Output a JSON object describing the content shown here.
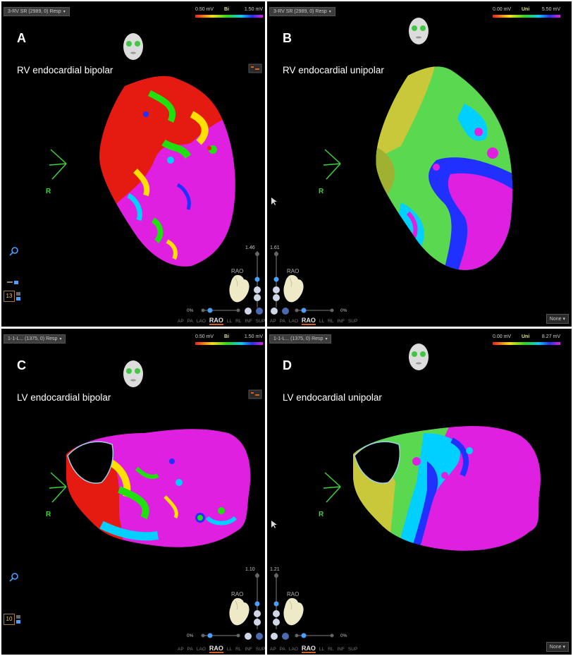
{
  "panels": {
    "a": {
      "letter": "A",
      "caption": "RV endocardial bipolar",
      "map_name": "3-RV SR (2989, 0) Resp",
      "colorbar": {
        "min": "0.50 mV",
        "mode": "Bi",
        "max": "1.50 mV"
      },
      "zoom_value": "1.46",
      "transparency": "0%",
      "view_label": "RAO",
      "side_number": "13",
      "axis_label": "R"
    },
    "b": {
      "letter": "B",
      "caption": "RV endocardial unipolar",
      "map_name": "3-RV SR (2989, 0) Resp",
      "colorbar": {
        "min": "0.00 mV",
        "mode": "Uni",
        "max": "5.50 mV"
      },
      "zoom_value": "1.61",
      "transparency": "0%",
      "view_label": "RAO",
      "axis_label": "R",
      "dropdown": "None"
    },
    "c": {
      "letter": "C",
      "caption": "LV endocardial bipolar",
      "map_name": "1-1-L... (1375, 0) Resp",
      "colorbar": {
        "min": "0.50 mV",
        "mode": "Bi",
        "max": "1.50 mV"
      },
      "zoom_value": "1.10",
      "transparency": "0%",
      "view_label": "RAO",
      "side_number": "10",
      "axis_label": "R"
    },
    "d": {
      "letter": "D",
      "caption": "LV endocardial unipolar",
      "map_name": "1-1-L... (1375, 0) Resp",
      "colorbar": {
        "min": "0.00 mV",
        "mode": "Uni",
        "max": "8.27 mV"
      },
      "zoom_value": "1.21",
      "transparency": "0%",
      "view_label": "RAO",
      "axis_label": "R",
      "dropdown": "None"
    }
  },
  "view_tabs": [
    "AP",
    "PA",
    "LAO",
    "RAO",
    "LL",
    "RL",
    "INF",
    "SUP"
  ],
  "colors": {
    "scar": "#ff1a1a",
    "border": "#20e010",
    "healthy": "#e020e0",
    "axis": "#3cd23c",
    "panel_bg": "#000000"
  }
}
